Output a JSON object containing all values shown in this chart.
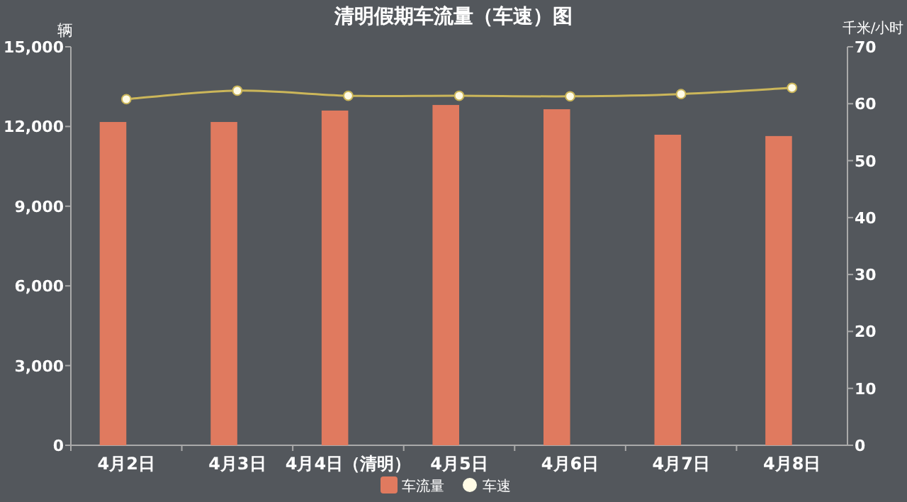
{
  "chart_data": {
    "type": "bar",
    "title": "清明假期车流量（车速）图",
    "categories": [
      "4月2日",
      "4月3日",
      "4月4日（清明）",
      "4月5日",
      "4月6日",
      "4月7日",
      "4月8日"
    ],
    "series": [
      {
        "name": "车流量",
        "color": "#e07a5f",
        "values": [
          12170,
          12170,
          12600,
          12810,
          12650,
          11690,
          11640
        ]
      },
      {
        "name": "车速",
        "type": "line",
        "axis": "y2",
        "color": "#cbb65a",
        "marker": "circle",
        "values": [
          60.8,
          62.3,
          61.4,
          61.4,
          61.3,
          61.7,
          62.8
        ]
      }
    ],
    "ylabel": "辆",
    "y2label": "千米/小时",
    "ylim": [
      0,
      15000
    ],
    "yticks": [
      0,
      {
        "value": 3000,
        "label": "3,000"
      },
      {
        "value": 6000,
        "label": "6,000"
      },
      {
        "value": 9000,
        "label": "9,000"
      },
      {
        "value": 12000,
        "label": "12,000"
      },
      {
        "value": 15000,
        "label": "15,000"
      }
    ],
    "y2lim": [
      0,
      70
    ],
    "y2ticks": [
      0,
      10,
      20,
      30,
      40,
      50,
      60,
      70
    ],
    "grid": false,
    "legend": "bottom"
  }
}
